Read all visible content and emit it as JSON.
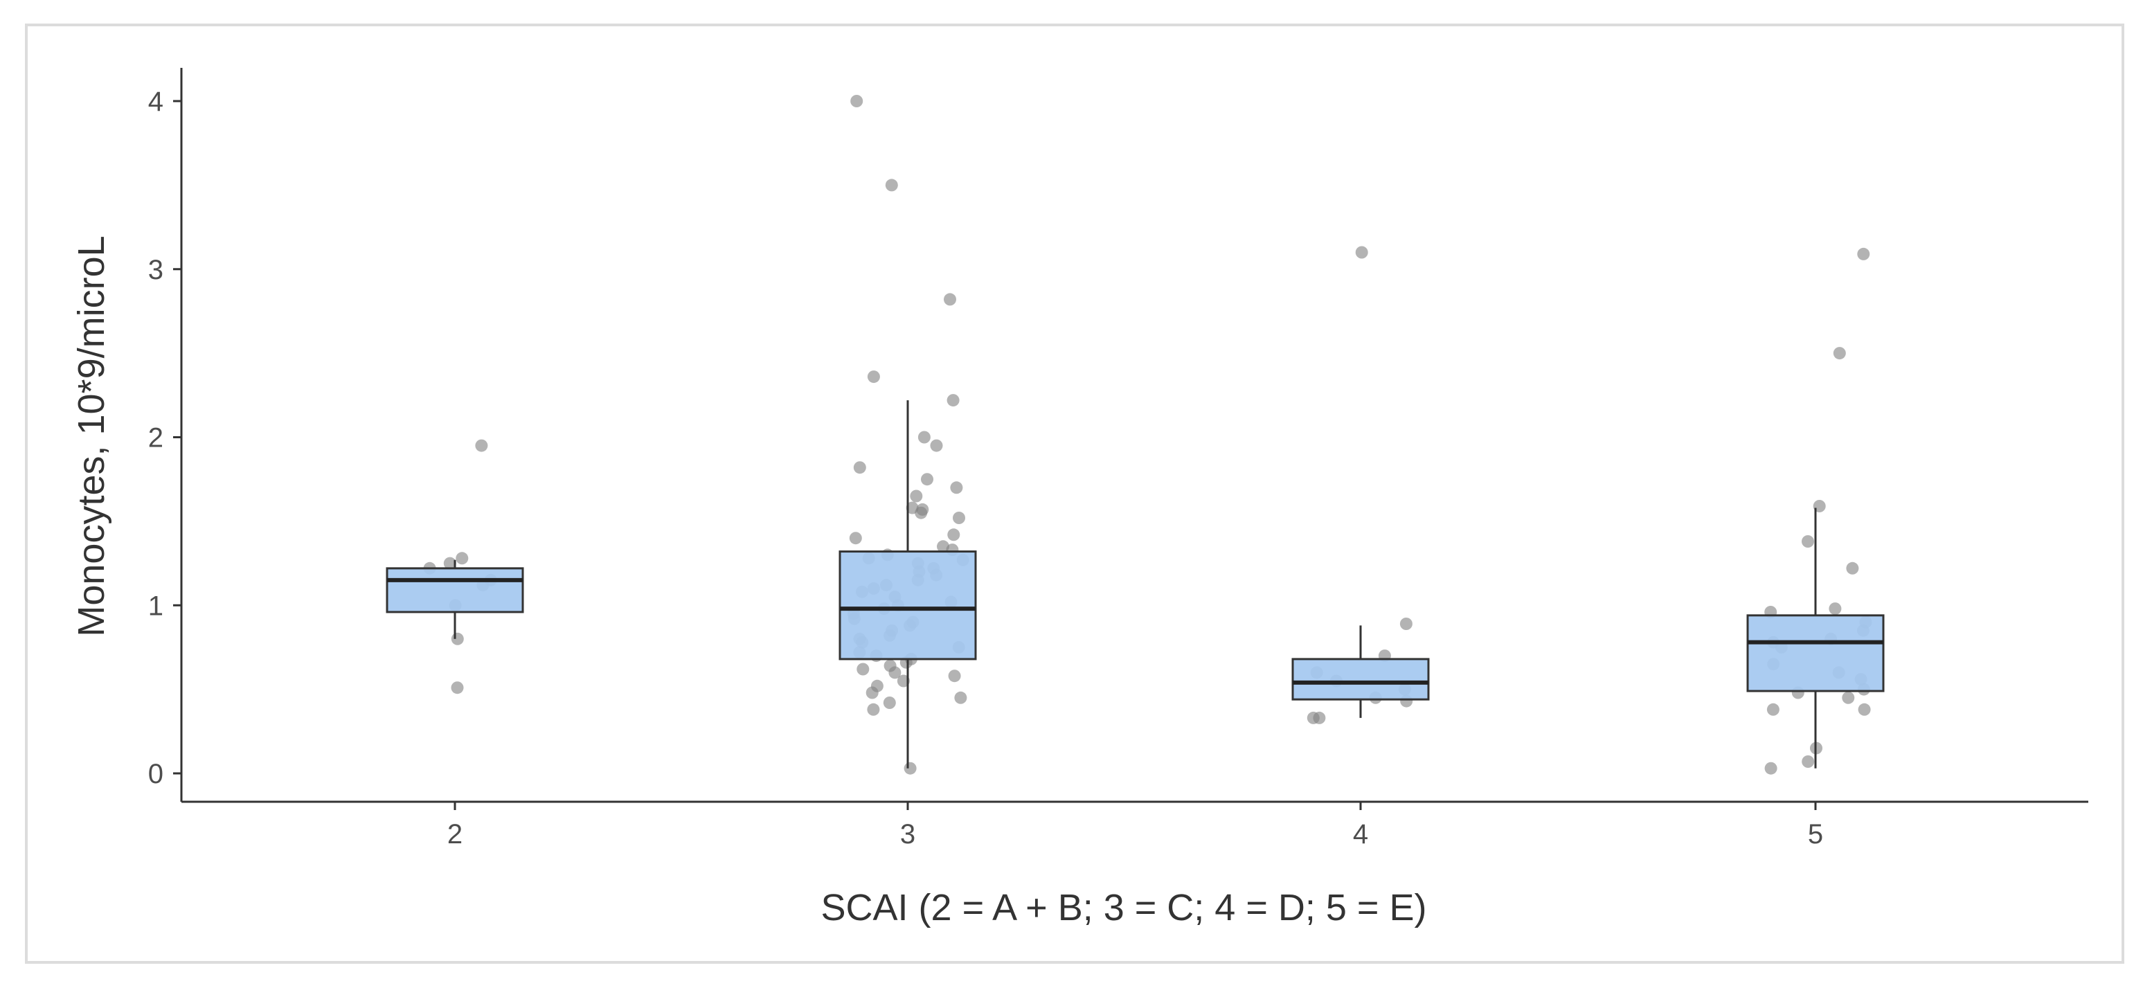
{
  "chart_data": {
    "type": "box",
    "title": "",
    "xlabel": "SCAI (2 = A + B; 3 = C; 4 = D; 5 = E)",
    "ylabel": "Monocytes, 10*9/microL",
    "ylim": [
      0,
      4
    ],
    "yticks": [
      0,
      1,
      2,
      3,
      4
    ],
    "categories": [
      "2",
      "3",
      "4",
      "5"
    ],
    "grid": false,
    "legend": "none",
    "colors": {
      "box_fill": "#a4c8f0",
      "box_stroke": "#333333",
      "median": "#222222",
      "points": "#808080",
      "axis": "#333333"
    },
    "boxes": [
      {
        "category": "2",
        "q1": 0.96,
        "median": 1.15,
        "q3": 1.22,
        "whisker_low": 0.8,
        "whisker_high": 1.27
      },
      {
        "category": "3",
        "q1": 0.68,
        "median": 0.98,
        "q3": 1.32,
        "whisker_low": 0.03,
        "whisker_high": 2.22
      },
      {
        "category": "4",
        "q1": 0.44,
        "median": 0.54,
        "q3": 0.68,
        "whisker_low": 0.33,
        "whisker_high": 0.88
      },
      {
        "category": "5",
        "q1": 0.49,
        "median": 0.78,
        "q3": 0.94,
        "whisker_low": 0.03,
        "whisker_high": 1.58
      }
    ],
    "points": [
      {
        "category": "2",
        "values": [
          1.95,
          1.28,
          1.25,
          1.22,
          1.15,
          1.12,
          1.0,
          0.8,
          0.51
        ]
      },
      {
        "category": "3",
        "values": [
          4.0,
          3.5,
          2.82,
          2.36,
          2.22,
          2.0,
          1.95,
          1.82,
          1.75,
          1.7,
          1.65,
          1.58,
          1.57,
          1.55,
          1.52,
          1.42,
          1.4,
          1.35,
          1.33,
          1.3,
          1.28,
          1.27,
          1.25,
          1.22,
          1.2,
          1.18,
          1.15,
          1.12,
          1.1,
          1.08,
          1.05,
          1.02,
          1.0,
          0.98,
          0.95,
          0.92,
          0.9,
          0.88,
          0.85,
          0.82,
          0.8,
          0.78,
          0.75,
          0.72,
          0.7,
          0.68,
          0.66,
          0.64,
          0.62,
          0.6,
          0.58,
          0.55,
          0.52,
          0.48,
          0.45,
          0.42,
          0.38,
          0.03
        ]
      },
      {
        "category": "4",
        "values": [
          3.1,
          0.89,
          0.7,
          0.6,
          0.55,
          0.5,
          0.45,
          0.43,
          0.33,
          0.33
        ]
      },
      {
        "category": "5",
        "values": [
          3.09,
          2.5,
          1.59,
          1.38,
          1.22,
          0.98,
          0.96,
          0.9,
          0.85,
          0.8,
          0.78,
          0.75,
          0.65,
          0.6,
          0.56,
          0.5,
          0.48,
          0.45,
          0.38,
          0.38,
          0.15,
          0.07,
          0.03
        ]
      }
    ]
  }
}
